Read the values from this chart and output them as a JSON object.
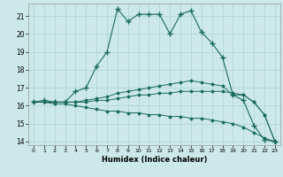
{
  "xlabel": "Humidex (Indice chaleur)",
  "xlim": [
    -0.5,
    23.5
  ],
  "ylim": [
    13.8,
    21.7
  ],
  "yticks": [
    14,
    15,
    16,
    17,
    18,
    19,
    20,
    21
  ],
  "xticks": [
    0,
    1,
    2,
    3,
    4,
    5,
    6,
    7,
    8,
    9,
    10,
    11,
    12,
    13,
    14,
    15,
    16,
    17,
    18,
    19,
    20,
    21,
    22,
    23
  ],
  "bg_color": "#cce8e8",
  "line_color": "#1a6b5a",
  "grid_color": "#aad4d4",
  "lines": [
    {
      "x": [
        0,
        1,
        2,
        3,
        4,
        5,
        6,
        7,
        8,
        9,
        10,
        11,
        12,
        13,
        14,
        15,
        16,
        17,
        18,
        19,
        20,
        21,
        22,
        23
      ],
      "y": [
        16.2,
        16.3,
        16.2,
        16.2,
        16.8,
        17.0,
        18.2,
        19.0,
        21.4,
        20.7,
        21.1,
        21.1,
        21.1,
        20.0,
        21.1,
        21.3,
        20.1,
        19.5,
        18.7,
        16.6,
        16.3,
        14.9,
        14.1,
        14.0
      ],
      "marker": "+",
      "ms": 4,
      "lw": 0.8
    },
    {
      "x": [
        0,
        1,
        2,
        3,
        4,
        5,
        6,
        7,
        8,
        9,
        10,
        11,
        12,
        13,
        14,
        15,
        16,
        17,
        18,
        19,
        20,
        21,
        22,
        23
      ],
      "y": [
        16.2,
        16.2,
        16.2,
        16.2,
        16.2,
        16.3,
        16.4,
        16.5,
        16.7,
        16.8,
        16.9,
        17.0,
        17.1,
        17.2,
        17.3,
        17.4,
        17.3,
        17.2,
        17.1,
        16.6,
        16.6,
        16.2,
        15.5,
        14.0
      ],
      "marker": "D",
      "ms": 1.5,
      "lw": 0.7
    },
    {
      "x": [
        0,
        1,
        2,
        3,
        4,
        5,
        6,
        7,
        8,
        9,
        10,
        11,
        12,
        13,
        14,
        15,
        16,
        17,
        18,
        19,
        20,
        21,
        22,
        23
      ],
      "y": [
        16.2,
        16.2,
        16.2,
        16.2,
        16.2,
        16.2,
        16.3,
        16.3,
        16.4,
        16.5,
        16.6,
        16.6,
        16.7,
        16.7,
        16.8,
        16.8,
        16.8,
        16.8,
        16.8,
        16.7,
        16.6,
        16.2,
        15.5,
        14.0
      ],
      "marker": "D",
      "ms": 1.5,
      "lw": 0.7
    },
    {
      "x": [
        0,
        1,
        2,
        3,
        4,
        5,
        6,
        7,
        8,
        9,
        10,
        11,
        12,
        13,
        14,
        15,
        16,
        17,
        18,
        19,
        20,
        21,
        22,
        23
      ],
      "y": [
        16.2,
        16.2,
        16.1,
        16.1,
        16.0,
        15.9,
        15.8,
        15.7,
        15.7,
        15.6,
        15.6,
        15.5,
        15.5,
        15.4,
        15.4,
        15.3,
        15.3,
        15.2,
        15.1,
        15.0,
        14.8,
        14.5,
        14.2,
        14.0
      ],
      "marker": "D",
      "ms": 1.5,
      "lw": 0.7
    }
  ]
}
